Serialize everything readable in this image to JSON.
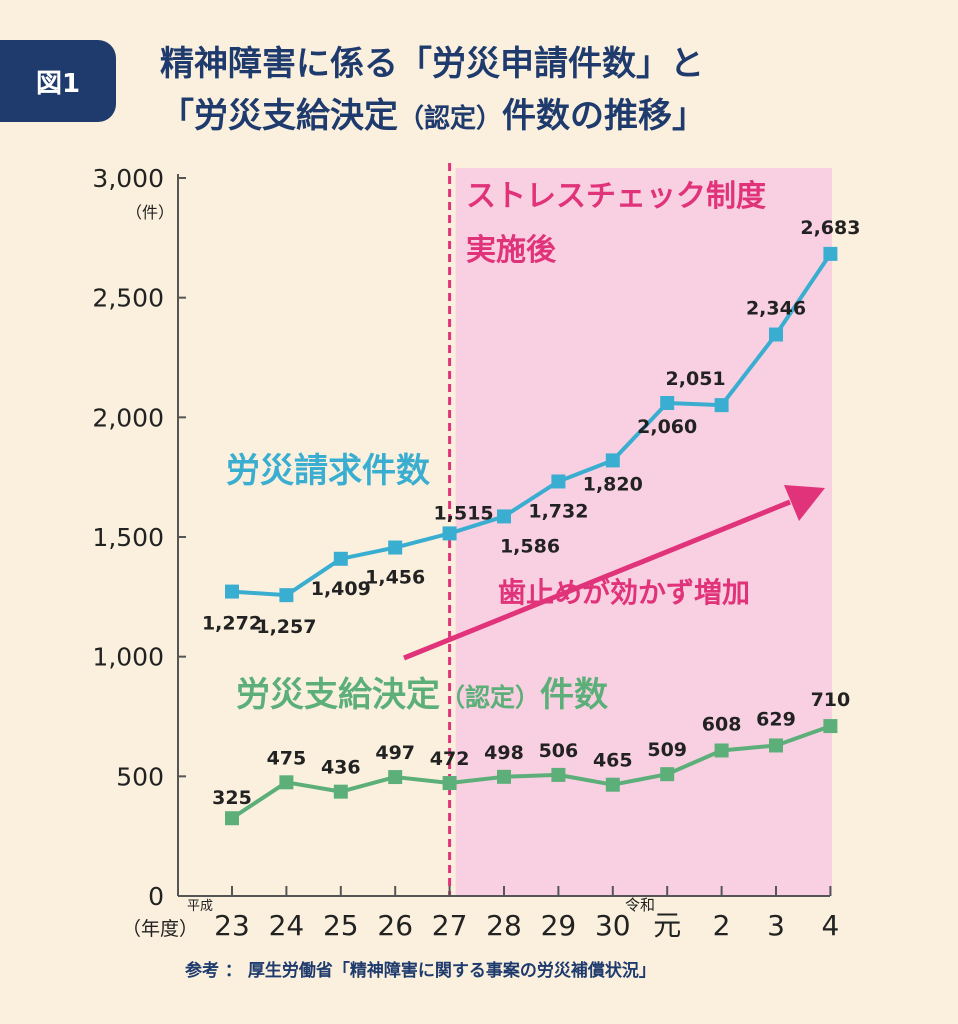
{
  "badge": "図1",
  "title": {
    "line1": "精神障害に係る「労災申請件数」と",
    "line2_a": "「労災支給決定",
    "line2_b": "（認定）",
    "line2_c": "件数の推移」"
  },
  "footer": "参考 ： 厚生労働省「精神障害に関する事案の労災補償状況」",
  "chart_data": {
    "type": "line",
    "categories": [
      "23",
      "24",
      "25",
      "26",
      "27",
      "28",
      "29",
      "30",
      "元",
      "2",
      "3",
      "4"
    ],
    "era_labels": {
      "heisei": "平成",
      "reiwa": "令和"
    },
    "xlabel": "（年度）",
    "ylabel": "（件）",
    "ylim": [
      0,
      3000
    ],
    "yticks": [
      0,
      500,
      1000,
      1500,
      2000,
      2500,
      3000
    ],
    "ytick_labels": [
      "0",
      "500",
      "1,000",
      "1,500",
      "2,000",
      "2,500",
      "3,000"
    ],
    "series": [
      {
        "name": "労災請求件数",
        "color": "#3aaed0",
        "values": [
          1272,
          1257,
          1409,
          1456,
          1515,
          1586,
          1732,
          1820,
          2060,
          2051,
          2346,
          2683
        ],
        "labels": [
          "1,272",
          "1,257",
          "1,409",
          "1,456",
          "1,515",
          "1,586",
          "1,732",
          "1,820",
          "2,060",
          "2,051",
          "2,346",
          "2,683"
        ]
      },
      {
        "name": "労災支給決定（認定）件数",
        "name_main": "労災支給決定",
        "name_paren": "（認定）",
        "name_tail": "件数",
        "color": "#5daf7a",
        "values": [
          325,
          475,
          436,
          497,
          472,
          498,
          506,
          465,
          509,
          608,
          629,
          710
        ],
        "labels": [
          "325",
          "475",
          "436",
          "497",
          "472",
          "498",
          "506",
          "465",
          "509",
          "608",
          "629",
          "710"
        ]
      }
    ],
    "highlight": {
      "label_line1": "ストレスチェック制度",
      "label_line2": "実施後",
      "start_category": "27",
      "color": "#f9d0e2",
      "line_color": "#e0337a"
    },
    "annotation": {
      "text": "歯止めが効かず増加",
      "color": "#e0337a"
    }
  }
}
